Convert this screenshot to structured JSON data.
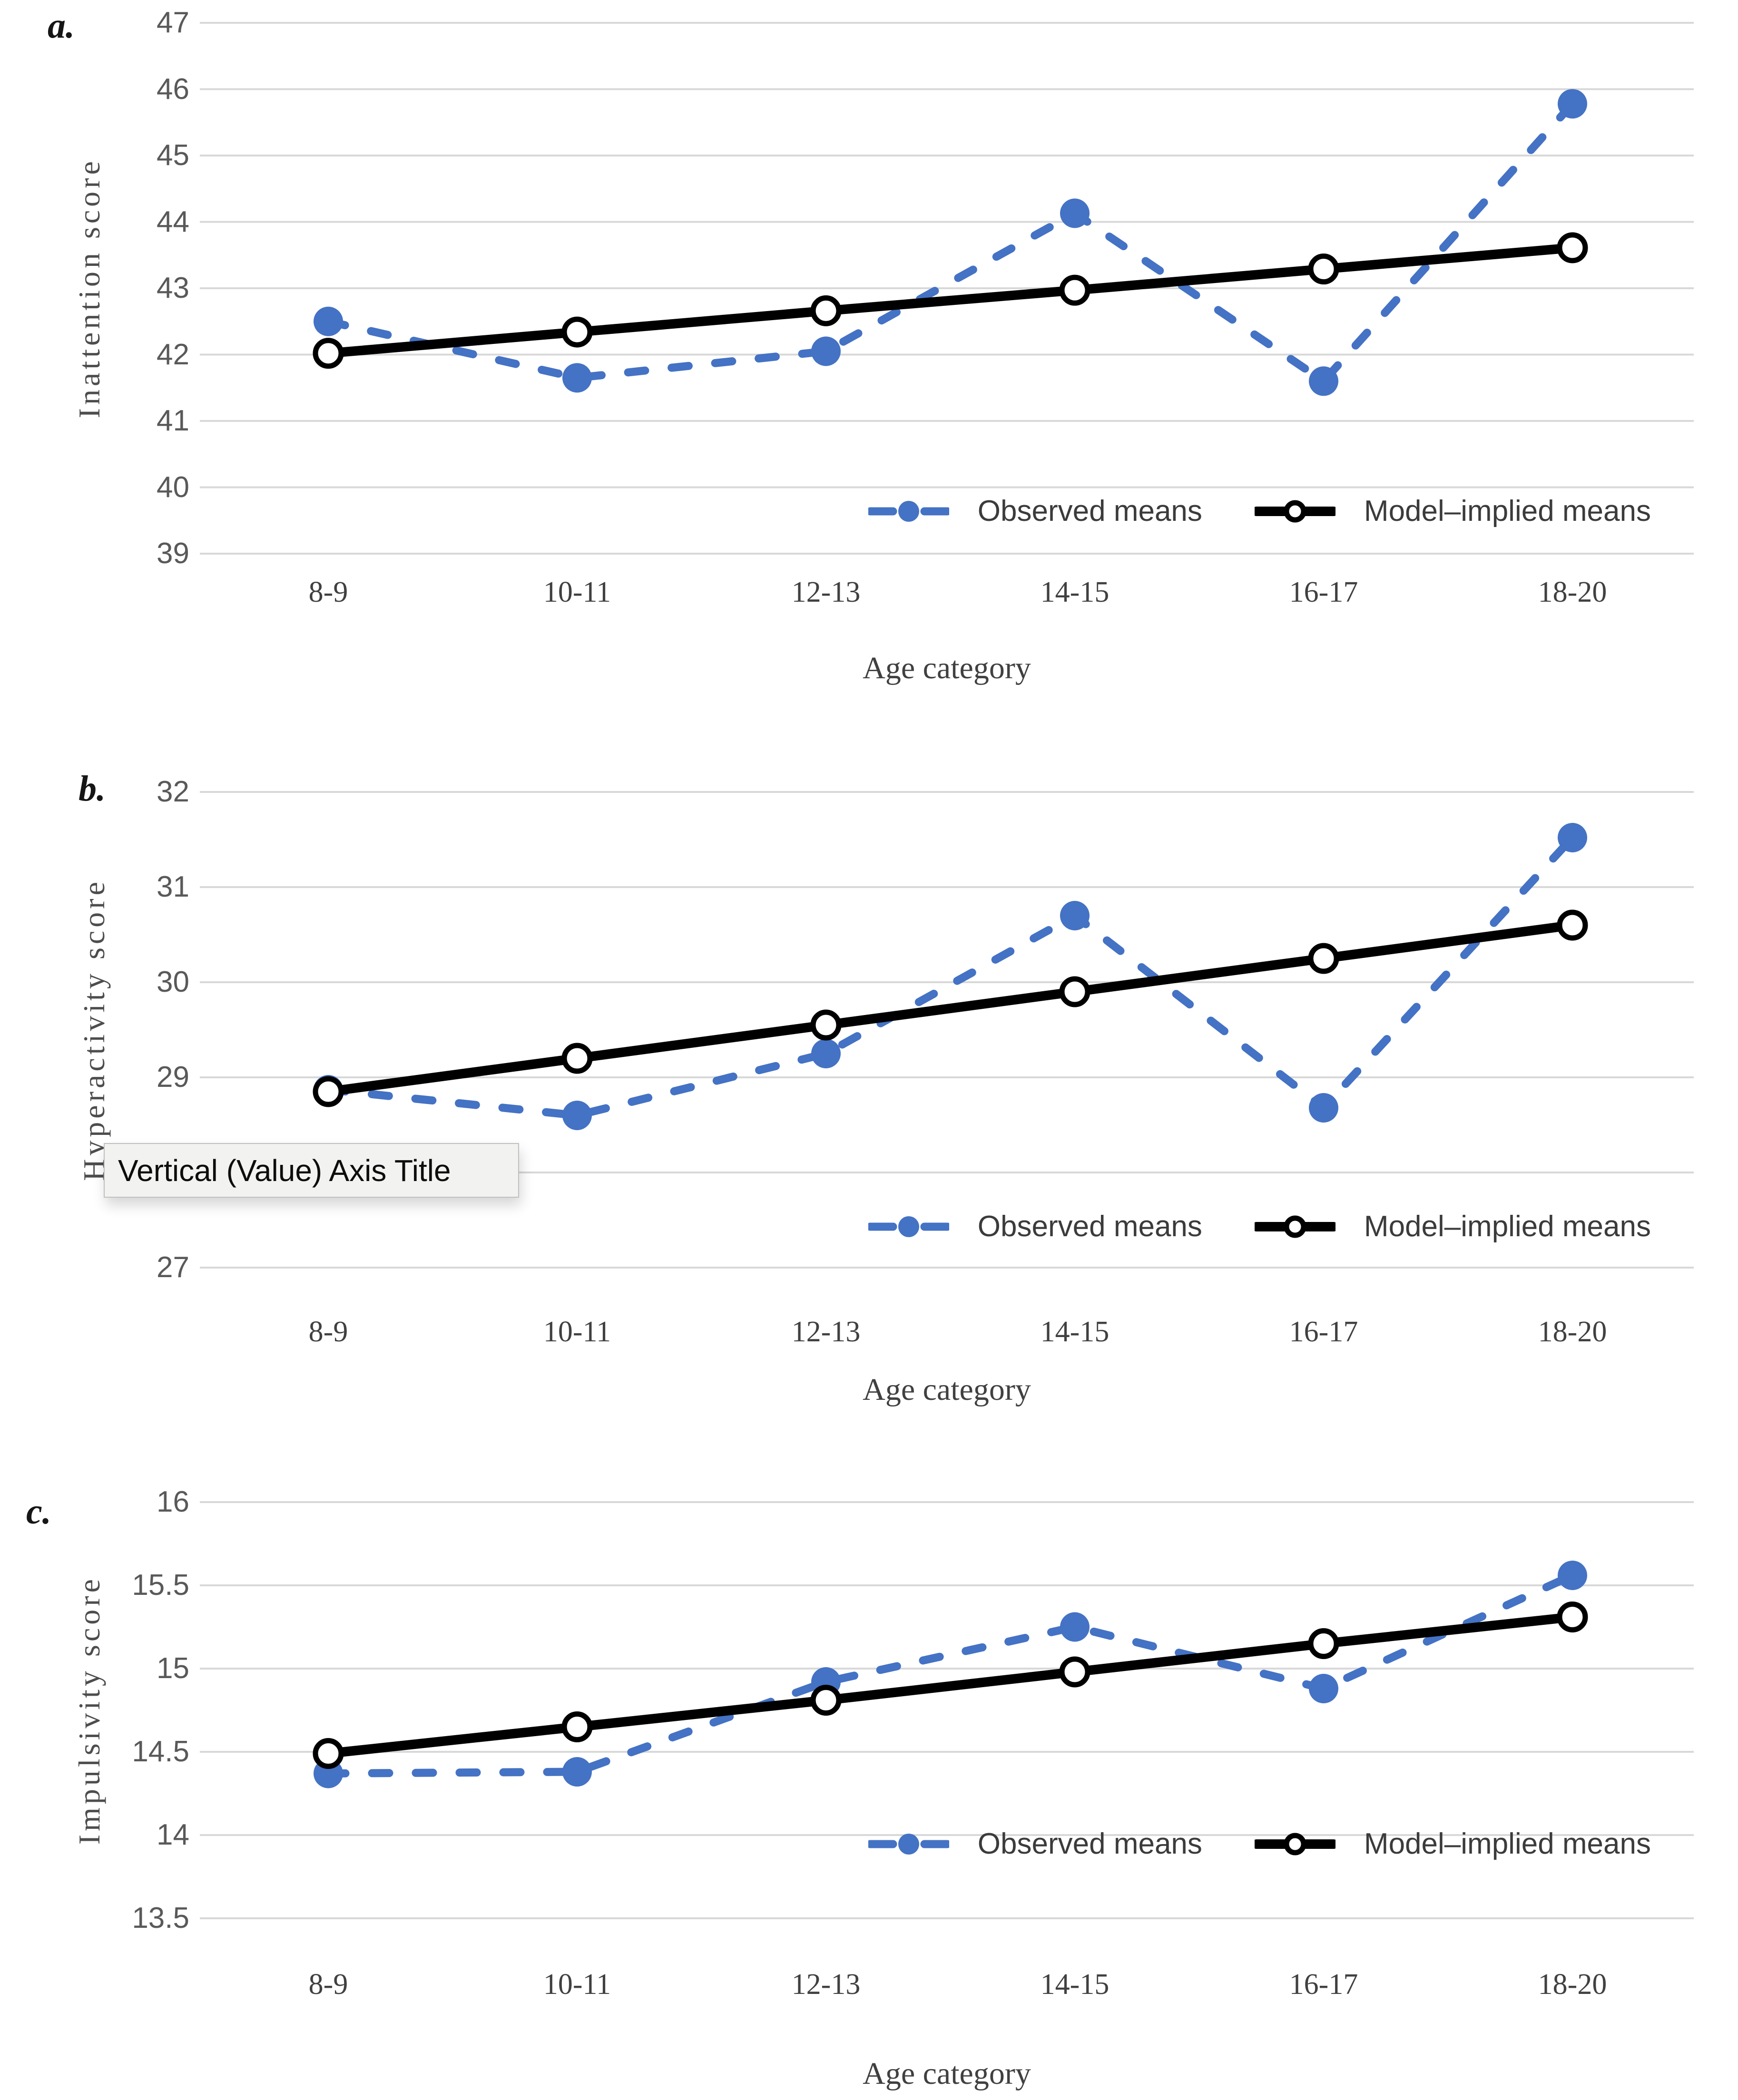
{
  "colors": {
    "observed_blue": "#4472C4",
    "model_black": "#000000",
    "gridline": "#D8D8D8",
    "y_tick_label": "#595959",
    "axis_text": "#404040"
  },
  "tooltip": {
    "text": "Vertical (Value) Axis Title"
  },
  "chart_data": [
    {
      "id": "a",
      "panel_label": "a.",
      "type": "line",
      "title": "",
      "ylabel": "Inattention score",
      "xlabel": "Age category",
      "categories": [
        "8-9",
        "10-11",
        "12-13",
        "14-15",
        "16-17",
        "18-20"
      ],
      "series": [
        {
          "name": "Observed means",
          "style": "dashed",
          "color": "#4472C4",
          "marker": "filled-circle",
          "values": [
            42.5,
            41.65,
            42.05,
            44.13,
            41.6,
            45.78
          ]
        },
        {
          "name": "Model–implied means",
          "style": "solid",
          "color": "#000000",
          "marker": "open-circle",
          "values": [
            42.02,
            42.34,
            42.66,
            42.97,
            43.29,
            43.61
          ]
        }
      ],
      "ylim": [
        39,
        47
      ],
      "ytick_step": 1,
      "grid": true,
      "legend_position": "inside-bottom-right"
    },
    {
      "id": "b",
      "panel_label": "b.",
      "type": "line",
      "title": "",
      "ylabel": "Hyperactivity score",
      "xlabel": "Age category",
      "categories": [
        "8-9",
        "10-11",
        "12-13",
        "14-15",
        "16-17",
        "18-20"
      ],
      "series": [
        {
          "name": "Observed means",
          "style": "dashed",
          "color": "#4472C4",
          "marker": "filled-circle",
          "values": [
            28.87,
            28.6,
            29.25,
            30.7,
            28.68,
            31.52
          ]
        },
        {
          "name": "Model–implied means",
          "style": "solid",
          "color": "#000000",
          "marker": "open-circle",
          "values": [
            28.85,
            29.2,
            29.55,
            29.9,
            30.25,
            30.6
          ]
        }
      ],
      "ylim": [
        27,
        32
      ],
      "ytick_step": 1,
      "ytick_hidden_by_tooltip": 28,
      "grid": true,
      "legend_position": "inside-bottom-right"
    },
    {
      "id": "c",
      "panel_label": "c.",
      "type": "line",
      "title": "",
      "ylabel": "Impulsivity score",
      "xlabel": "Age category",
      "categories": [
        "8-9",
        "10-11",
        "12-13",
        "14-15",
        "16-17",
        "18-20"
      ],
      "series": [
        {
          "name": "Observed means",
          "style": "dashed",
          "color": "#4472C4",
          "marker": "filled-circle",
          "values": [
            14.37,
            14.38,
            14.92,
            15.25,
            14.88,
            15.56
          ]
        },
        {
          "name": "Model–implied means",
          "style": "solid",
          "color": "#000000",
          "marker": "open-circle",
          "values": [
            14.49,
            14.65,
            14.81,
            14.98,
            15.15,
            15.31
          ]
        }
      ],
      "ylim": [
        13.5,
        16
      ],
      "ytick_step": 0.5,
      "grid": true,
      "legend_position": "inside-bottom-right"
    }
  ]
}
